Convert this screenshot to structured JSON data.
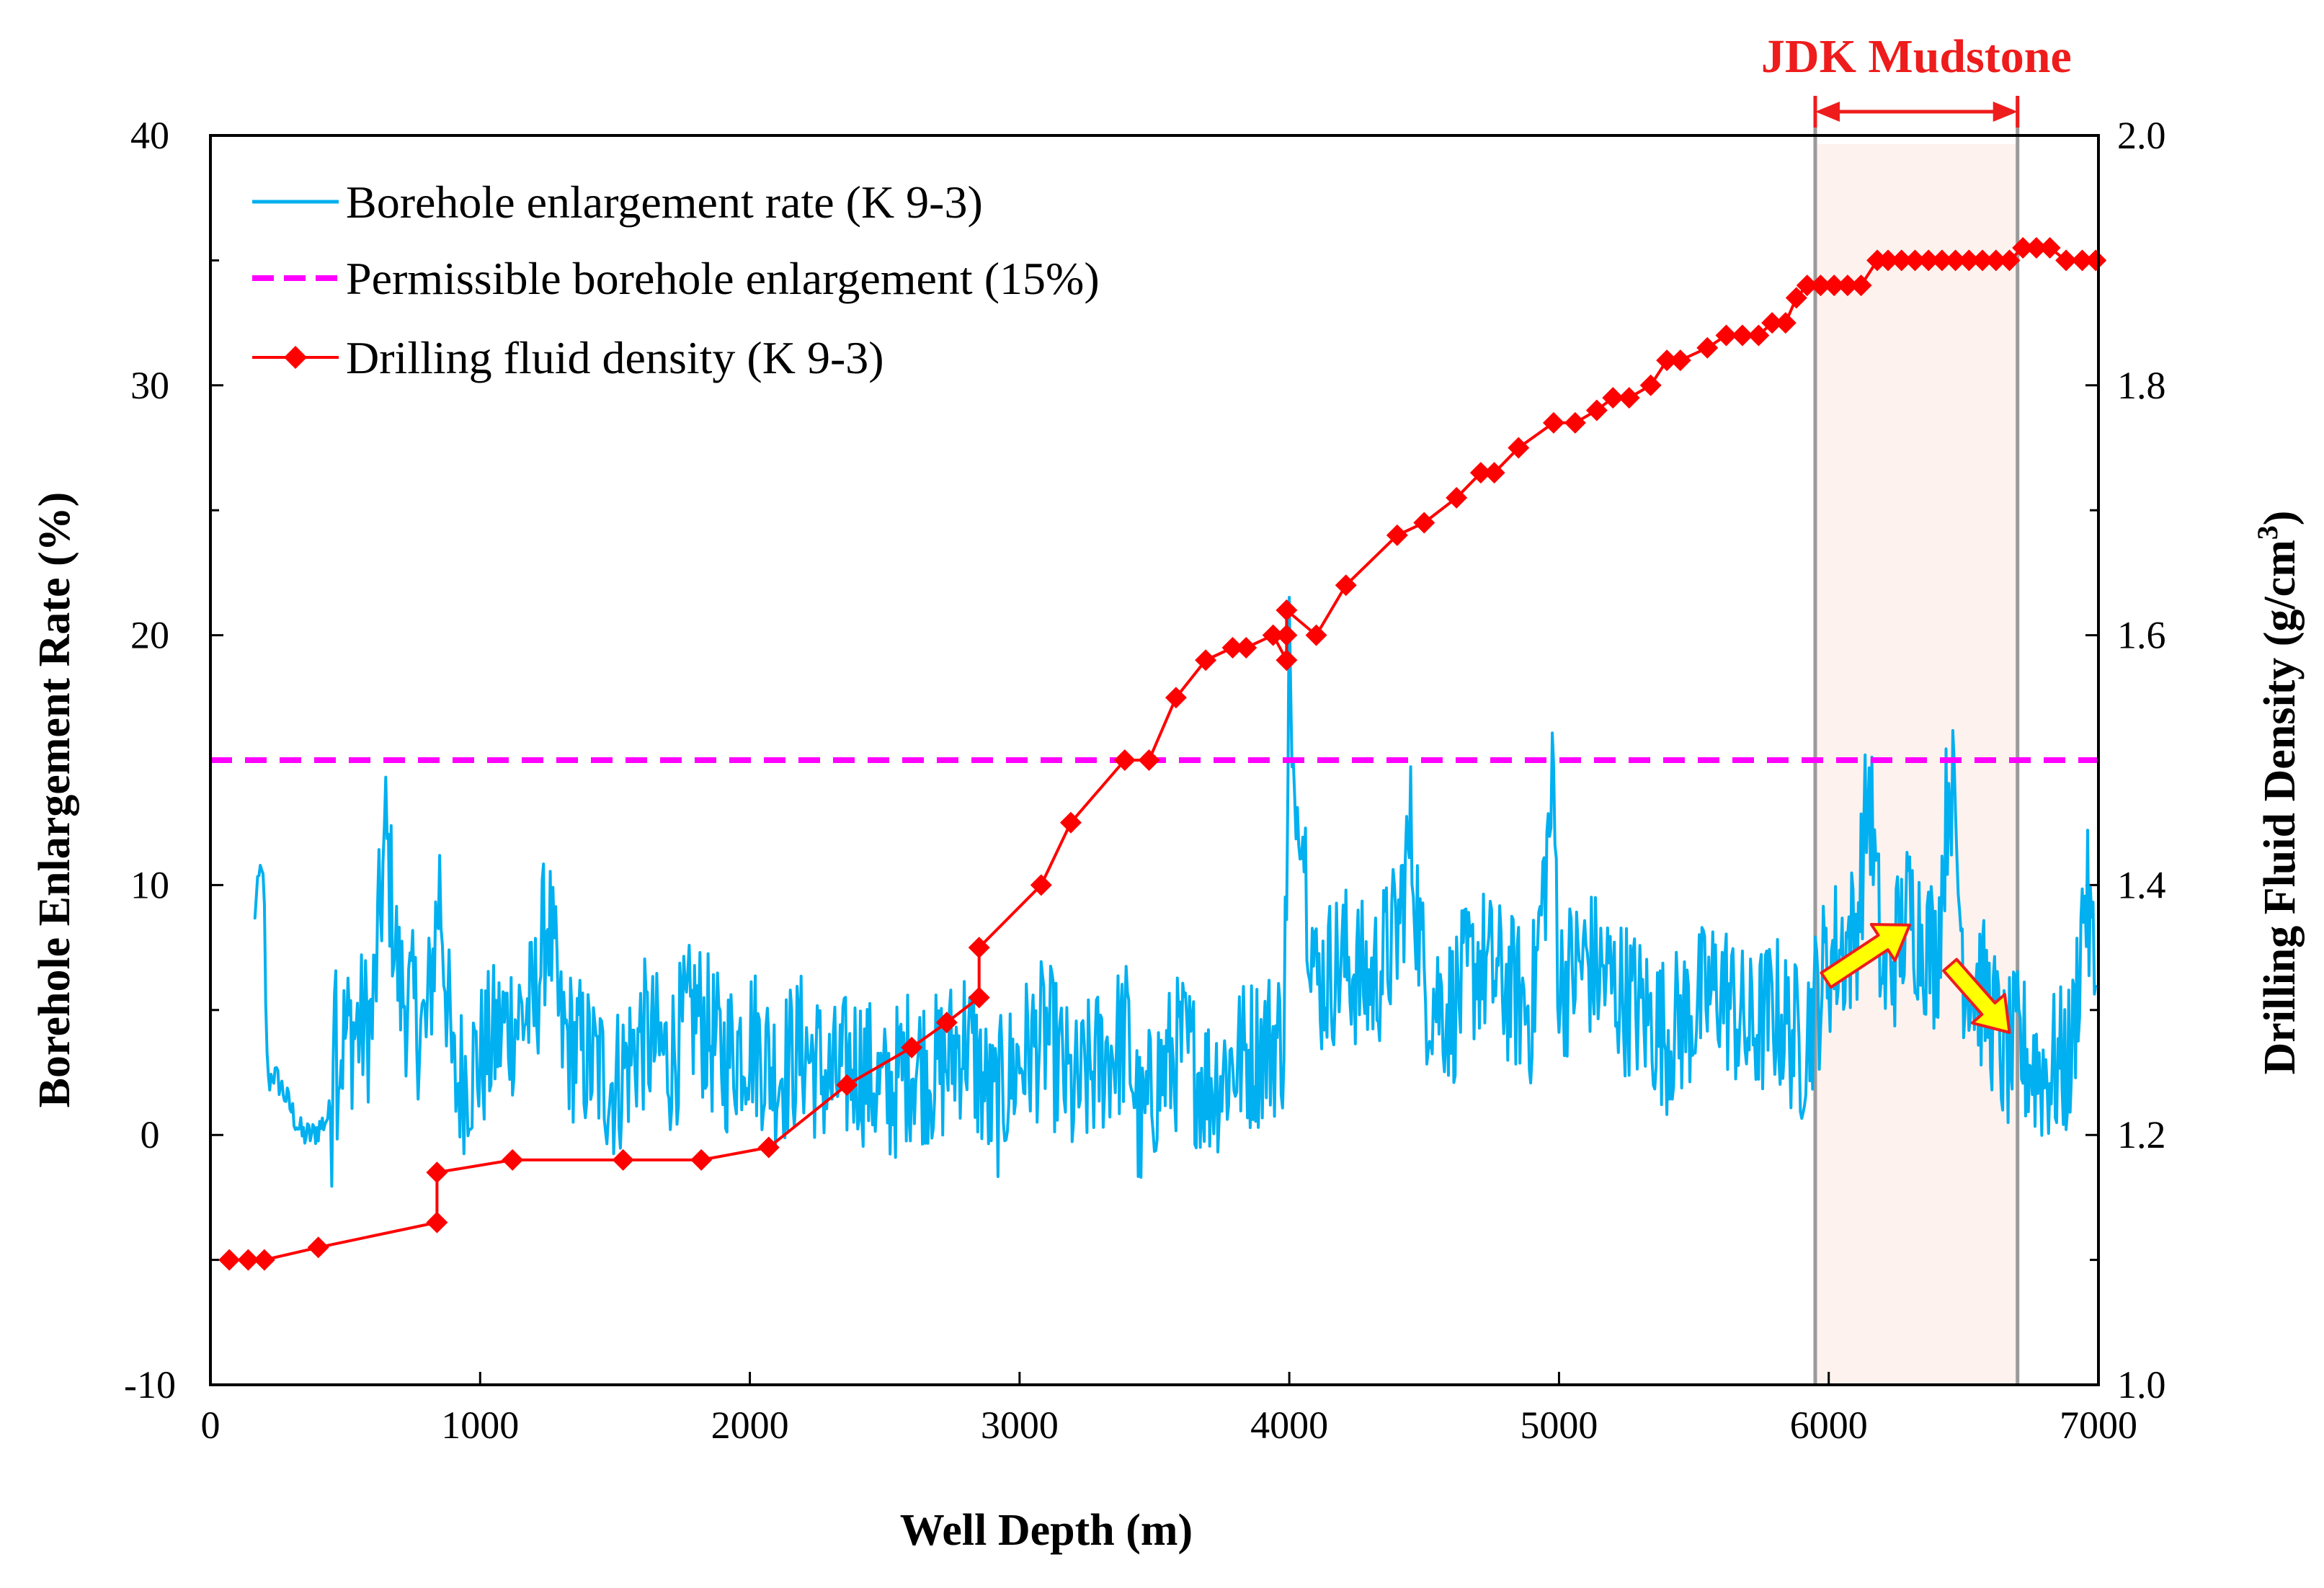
{
  "chart_data": {
    "type": "line",
    "xlabel": "Well Depth (m)",
    "ylabel_left": "Borehole Enlargement Rate (%)",
    "ylabel_right_main": "Drilling Fluid Density (g/cm",
    "ylabel_right_sup": "3",
    "ylabel_right_close": ")",
    "xlim": [
      0,
      7000
    ],
    "ylim_left": [
      -10,
      40
    ],
    "ylim_right": [
      1.0,
      2.0
    ],
    "x_ticks": [
      "0",
      "1000",
      "2000",
      "3000",
      "4000",
      "5000",
      "6000",
      "7000"
    ],
    "y_left_ticks": [
      "-10",
      "0",
      "10",
      "20",
      "30",
      "40"
    ],
    "y_right_ticks": [
      "1.0",
      "1.2",
      "1.4",
      "1.6",
      "1.8",
      "2.0"
    ],
    "legend": [
      {
        "label": "Borehole enlargement rate (K 9-3)",
        "color": "#00b0f0",
        "style": "solid"
      },
      {
        "label": "Permissible borehole enlargement (15%)",
        "color": "#ff00ff",
        "style": "dashed"
      },
      {
        "label": "Drilling fluid density (K 9-3)",
        "color": "#ff0000",
        "style": "diamond-line"
      }
    ],
    "permissible_enlargement": 15,
    "mudstone_zone": {
      "label": "JDK Mudstone",
      "x_start": 5950,
      "x_end": 6700
    },
    "enlargement_trend_arrows": [
      {
        "from": [
          5990,
          6.2
        ],
        "to": [
          6300,
          8.4
        ]
      },
      {
        "from": [
          6450,
          6.8
        ],
        "to": [
          6670,
          4.1
        ]
      }
    ],
    "density_series": {
      "name": "Drilling fluid density (K 9-3)",
      "x": [
        70,
        140,
        200,
        400,
        840,
        840,
        1120,
        1530,
        1820,
        2070,
        2360,
        2600,
        2730,
        2850,
        2850,
        3080,
        3190,
        3390,
        3480,
        3580,
        3690,
        3790,
        3840,
        3940,
        3990,
        3990,
        3990,
        4100,
        4210,
        4400,
        4500,
        4620,
        4710,
        4760,
        4850,
        4980,
        5060,
        5140,
        5200,
        5260,
        5340,
        5400,
        5450,
        5550,
        5620,
        5680,
        5740,
        5790,
        5840,
        5880,
        5920,
        5970,
        6020,
        6070,
        6120,
        6180,
        6220,
        6270,
        6320,
        6370,
        6420,
        6470,
        6520,
        6570,
        6620,
        6670,
        6720,
        6770,
        6820,
        6880,
        6940,
        6990
      ],
      "y": [
        1.1,
        1.1,
        1.1,
        1.11,
        1.13,
        1.17,
        1.18,
        1.18,
        1.18,
        1.19,
        1.24,
        1.27,
        1.29,
        1.31,
        1.35,
        1.4,
        1.45,
        1.5,
        1.5,
        1.55,
        1.58,
        1.59,
        1.59,
        1.6,
        1.58,
        1.6,
        1.62,
        1.6,
        1.64,
        1.68,
        1.69,
        1.71,
        1.73,
        1.73,
        1.75,
        1.77,
        1.77,
        1.78,
        1.79,
        1.79,
        1.8,
        1.82,
        1.82,
        1.83,
        1.84,
        1.84,
        1.84,
        1.85,
        1.85,
        1.87,
        1.88,
        1.88,
        1.88,
        1.88,
        1.88,
        1.9,
        1.9,
        1.9,
        1.9,
        1.9,
        1.9,
        1.9,
        1.9,
        1.9,
        1.9,
        1.9,
        1.91,
        1.91,
        1.91,
        1.9,
        1.9,
        1.9
      ]
    },
    "enlargement_series": {
      "name": "Borehole enlargement rate (K 9-3)",
      "x": [
        160,
        190,
        200,
        205,
        215,
        230,
        260,
        300,
        340,
        380,
        420,
        450,
        460,
        470,
        500,
        600,
        650,
        700,
        800,
        850,
        900,
        1000,
        1100,
        1200,
        1250,
        1300,
        1400,
        1500,
        1600,
        1700,
        1800,
        1900,
        2000,
        2100,
        2200,
        2300,
        2400,
        2500,
        2600,
        2700,
        2800,
        2900,
        3000,
        3100,
        3200,
        3300,
        3400,
        3450,
        3500,
        3600,
        3700,
        3800,
        3900,
        3980,
        3995,
        4000,
        4010,
        4050,
        4100,
        4200,
        4300,
        4400,
        4450,
        4500,
        4600,
        4700,
        4800,
        4900,
        4980,
        5000,
        5100,
        5200,
        5300,
        5400,
        5500,
        5600,
        5700,
        5800,
        5900,
        6000,
        6100,
        6150,
        6200,
        6300,
        6400,
        6450,
        6500,
        6600,
        6650,
        6700,
        6800,
        6900,
        6950,
        6990
      ],
      "y": [
        8.5,
        11.0,
        9.0,
        5.0,
        2.0,
        2.5,
        2.0,
        1.0,
        0.0,
        0.0,
        0.5,
        1.0,
        8.0,
        3.0,
        4.0,
        4.5,
        12.0,
        6.0,
        4.0,
        10.0,
        2.0,
        3.0,
        4.5,
        5.0,
        9.0,
        4.0,
        3.0,
        2.0,
        4.0,
        3.0,
        5.0,
        3.0,
        4.0,
        2.5,
        3.5,
        2.0,
        3.0,
        1.5,
        3.0,
        2.5,
        4.0,
        1.0,
        3.0,
        4.0,
        1.5,
        3.0,
        4.0,
        0.0,
        2.0,
        3.5,
        2.0,
        3.0,
        3.5,
        4.0,
        14.0,
        21.0,
        14.0,
        12.0,
        6.0,
        7.0,
        6.0,
        8.0,
        12.0,
        6.0,
        5.0,
        7.0,
        6.0,
        5.0,
        14.0,
        6.0,
        7.0,
        6.0,
        5.0,
        4.0,
        5.0,
        6.0,
        4.0,
        5.0,
        3.5,
        7.0,
        8.0,
        14.0,
        6.0,
        9.0,
        7.0,
        15.0,
        7.0,
        5.0,
        3.0,
        3.5,
        2.5,
        3.0,
        10.0,
        6.0
      ]
    }
  }
}
